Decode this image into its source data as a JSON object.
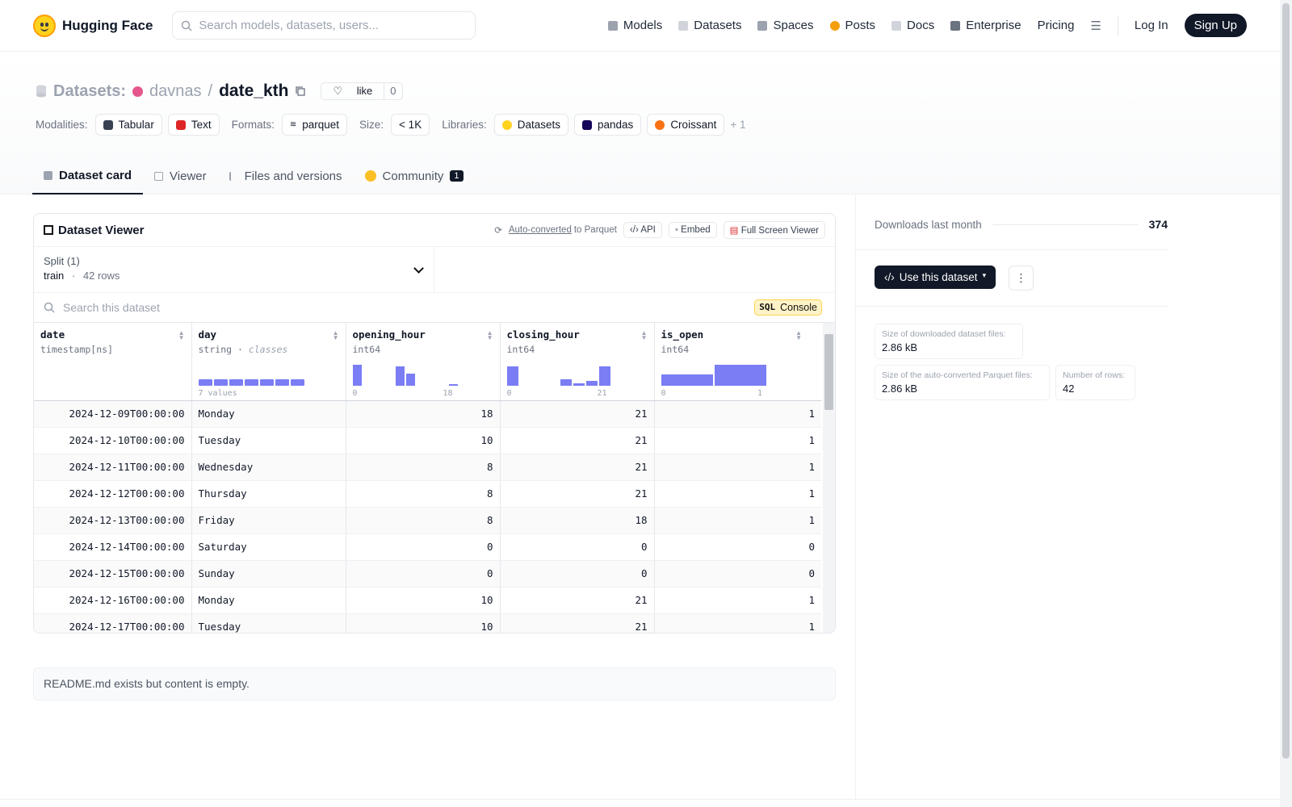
{
  "header": {
    "brand": "Hugging Face",
    "search_placeholder": "Search models, datasets, users...",
    "nav": [
      {
        "label": "Models",
        "color": "#9ca3af"
      },
      {
        "label": "Datasets",
        "color": "#d1d5db"
      },
      {
        "label": "Spaces",
        "color": "#9ca3af"
      },
      {
        "label": "Posts",
        "color": "#f59e0b"
      },
      {
        "label": "Docs",
        "color": "#d1d5db"
      },
      {
        "label": "Enterprise",
        "color": "#6b7280"
      }
    ],
    "pricing": "Pricing",
    "login": "Log In",
    "signup": "Sign Up"
  },
  "repo": {
    "section": "Datasets:",
    "owner": "davnas",
    "separator": "/",
    "name": "date_kth",
    "like_label": "like",
    "like_count": "0"
  },
  "tags": {
    "modalities_label": "Modalities:",
    "modalities": [
      {
        "label": "Tabular",
        "color": "#374151"
      },
      {
        "label": "Text",
        "color": "#dc2626"
      }
    ],
    "formats_label": "Formats:",
    "formats": [
      "parquet"
    ],
    "size_label": "Size:",
    "size": "< 1K",
    "libraries_label": "Libraries:",
    "libraries": [
      {
        "label": "Datasets",
        "color": "#ffd21e"
      },
      {
        "label": "pandas",
        "color": "#150458"
      },
      {
        "label": "Croissant",
        "color": "#f97316"
      }
    ],
    "more": "+ 1"
  },
  "tabs": [
    {
      "label": "Dataset card",
      "active": true
    },
    {
      "label": "Viewer"
    },
    {
      "label": "Files and versions"
    },
    {
      "label": "Community",
      "badge": "1"
    }
  ],
  "viewer": {
    "title": "Dataset Viewer",
    "auto_converted": "Auto-converted",
    "to_parquet": "to Parquet",
    "api": "API",
    "embed": "Embed",
    "fullscreen": "Full Screen Viewer",
    "split_label": "Split (1)",
    "split_name": "train",
    "split_dot": "·",
    "split_rows": "42 rows",
    "search_placeholder": "Search this dataset",
    "sql_badge": "SQL",
    "sql_console": "Console",
    "columns": [
      {
        "name": "date",
        "type": "timestamp[ns]"
      },
      {
        "name": "day",
        "type": "string",
        "type_extra": "classes",
        "axis_label": "7 values"
      },
      {
        "name": "opening_hour",
        "type": "int64",
        "axis_min": "0",
        "axis_max": "18"
      },
      {
        "name": "closing_hour",
        "type": "int64",
        "axis_min": "0",
        "axis_max": "21"
      },
      {
        "name": "is_open",
        "type": "int64",
        "axis_min": "0",
        "axis_max": "1"
      }
    ],
    "rows": [
      [
        "2024-12-09T00:00:00",
        "Monday",
        "18",
        "21",
        "1"
      ],
      [
        "2024-12-10T00:00:00",
        "Tuesday",
        "10",
        "21",
        "1"
      ],
      [
        "2024-12-11T00:00:00",
        "Wednesday",
        "8",
        "21",
        "1"
      ],
      [
        "2024-12-12T00:00:00",
        "Thursday",
        "8",
        "21",
        "1"
      ],
      [
        "2024-12-13T00:00:00",
        "Friday",
        "8",
        "18",
        "1"
      ],
      [
        "2024-12-14T00:00:00",
        "Saturday",
        "0",
        "0",
        "0"
      ],
      [
        "2024-12-15T00:00:00",
        "Sunday",
        "0",
        "0",
        "0"
      ],
      [
        "2024-12-16T00:00:00",
        "Monday",
        "10",
        "21",
        "1"
      ],
      [
        "2024-12-17T00:00:00",
        "Tuesday",
        "10",
        "21",
        "1"
      ]
    ]
  },
  "readme": "README.md exists but content is empty.",
  "sidebar": {
    "downloads_label": "Downloads last month",
    "downloads_value": "374",
    "use_dataset": "Use this dataset",
    "stats": [
      {
        "label": "Size of downloaded dataset files:",
        "value": "2.86 kB"
      },
      {
        "label": "Size of the auto-converted Parquet files:",
        "value": "2.86 kB"
      },
      {
        "label": "Number of rows:",
        "value": "42"
      }
    ]
  }
}
